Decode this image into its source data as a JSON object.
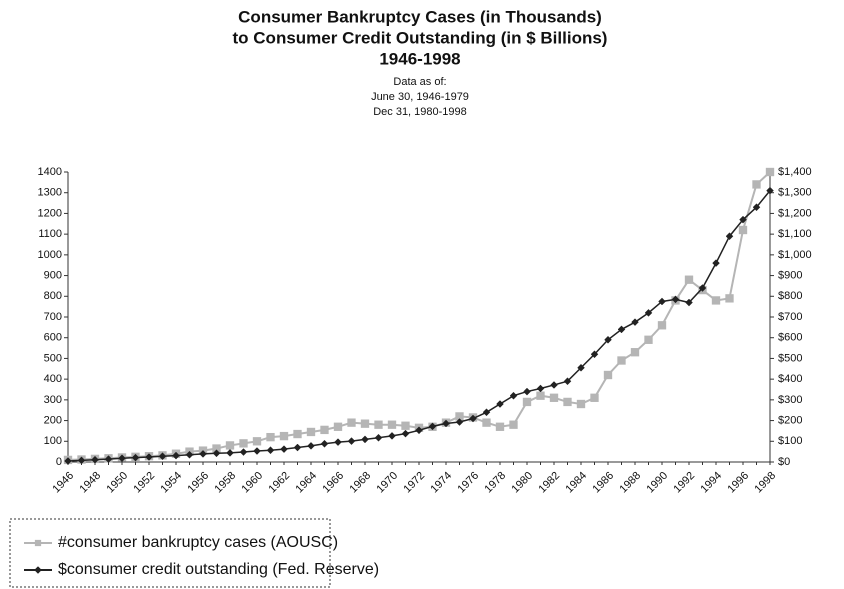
{
  "chart_data": {
    "type": "line",
    "title": [
      "Consumer Bankruptcy Cases (in Thousands)",
      "to Consumer Credit Outstanding (in $ Billions)",
      "1946-1998"
    ],
    "subtitle": [
      "Data as of:",
      "June 30, 1946-1979",
      "Dec 31, 1980-1998"
    ],
    "categories": [
      "1946",
      null,
      "1948",
      null,
      "1950",
      null,
      "1952",
      null,
      "1954",
      null,
      "1956",
      null,
      "1958",
      null,
      "1960",
      null,
      "1962",
      null,
      "1964",
      null,
      "1966",
      null,
      "1968",
      null,
      "1970",
      null,
      "1972",
      null,
      "1974",
      null,
      "1976",
      null,
      "1978",
      null,
      "1980",
      null,
      "1982",
      null,
      "1984",
      null,
      "1986",
      null,
      "1988",
      null,
      "1990",
      null,
      "1992",
      null,
      "1994",
      null,
      "1996",
      null,
      "1998"
    ],
    "series": [
      {
        "name": "#consumer bankruptcy cases (AOUSC)",
        "color": "#b5b5b5",
        "values": [
          10,
          12,
          15,
          18,
          22,
          25,
          28,
          32,
          40,
          50,
          55,
          65,
          80,
          90,
          100,
          120,
          125,
          135,
          145,
          155,
          170,
          190,
          185,
          180,
          180,
          175,
          165,
          170,
          190,
          220,
          215,
          190,
          170,
          180,
          290,
          320,
          310,
          290,
          280,
          310,
          420,
          490,
          530,
          590,
          660,
          780,
          880,
          830,
          780,
          790,
          1120,
          1340,
          1400
        ]
      },
      {
        "name": "$consumer credit outstanding (Fed. Reserve)",
        "color": "#222222",
        "axis": "y2",
        "values": [
          5,
          8,
          11,
          14,
          18,
          21,
          24,
          28,
          31,
          35,
          39,
          42,
          44,
          48,
          53,
          57,
          62,
          70,
          78,
          88,
          96,
          101,
          109,
          117,
          126,
          137,
          153,
          172,
          186,
          193,
          210,
          240,
          280,
          320,
          340,
          355,
          372,
          390,
          455,
          520,
          590,
          640,
          675,
          720,
          775,
          785,
          770,
          840,
          960,
          1090,
          1170,
          1230,
          1310
        ]
      }
    ],
    "ylim": [
      0,
      1400
    ],
    "yticks": [
      0,
      100,
      200,
      300,
      400,
      500,
      600,
      700,
      800,
      900,
      1000,
      1100,
      1200,
      1300,
      1400
    ],
    "y2lim": [
      0,
      1400
    ],
    "y2ticks": [
      {
        "value": 0,
        "label": "$0"
      },
      {
        "value": 100,
        "label": "$100"
      },
      {
        "value": 200,
        "label": "$200"
      },
      {
        "value": 300,
        "label": "$300"
      },
      {
        "value": 400,
        "label": "$400"
      },
      {
        "value": 500,
        "label": "$500"
      },
      {
        "value": 600,
        "label": "$600"
      },
      {
        "value": 700,
        "label": "$700"
      },
      {
        "value": 800,
        "label": "$800"
      },
      {
        "value": 900,
        "label": "$900"
      },
      {
        "value": 1000,
        "label": "$1,000"
      },
      {
        "value": 1100,
        "label": "$1,100"
      },
      {
        "value": 1200,
        "label": "$1,200"
      },
      {
        "value": 1300,
        "label": "$1,300"
      },
      {
        "value": 1400,
        "label": "$1,400"
      }
    ]
  }
}
